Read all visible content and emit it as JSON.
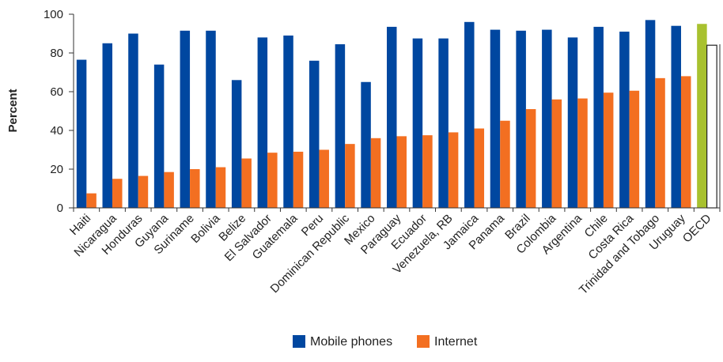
{
  "chart_data": {
    "type": "bar",
    "ylabel": "Percent",
    "ylim": [
      0,
      100
    ],
    "yticks": [
      0,
      20,
      40,
      60,
      80,
      100
    ],
    "grid": false,
    "legend_position": "bottom",
    "categories": [
      "Haiti",
      "Nicaragua",
      "Honduras",
      "Guyana",
      "Suriname",
      "Bolivia",
      "Belize",
      "El Salvador",
      "Guatemala",
      "Peru",
      "Dominican Republic",
      "Mexico",
      "Paraguay",
      "Ecuador",
      "Venezuela, RB",
      "Jamaica",
      "Panama",
      "Brazil",
      "Colombia",
      "Argentina",
      "Chile",
      "Costa Rica",
      "Trinidad and Tobago",
      "Uruguay",
      "OECD"
    ],
    "series": [
      {
        "name": "Mobile phones",
        "color": "#0047A0",
        "values": [
          76.5,
          85,
          90,
          74,
          91.5,
          91.5,
          66,
          88,
          89,
          76,
          84.5,
          65,
          93.5,
          87.5,
          87.5,
          96,
          92,
          91.5,
          92,
          88,
          93.5,
          91,
          97,
          94,
          95
        ]
      },
      {
        "name": "Internet",
        "color": "#F36F21",
        "values": [
          7.5,
          15,
          16.5,
          18.5,
          20,
          21,
          25.5,
          28.5,
          29,
          30,
          33,
          36,
          37,
          37.5,
          39,
          41,
          45,
          51,
          56,
          56.5,
          59.5,
          60.5,
          67,
          68,
          84
        ]
      }
    ],
    "highlight": {
      "category": "OECD",
      "colors": [
        "#A8C12F",
        "#FFFFFF"
      ],
      "outline": "#222222"
    }
  }
}
